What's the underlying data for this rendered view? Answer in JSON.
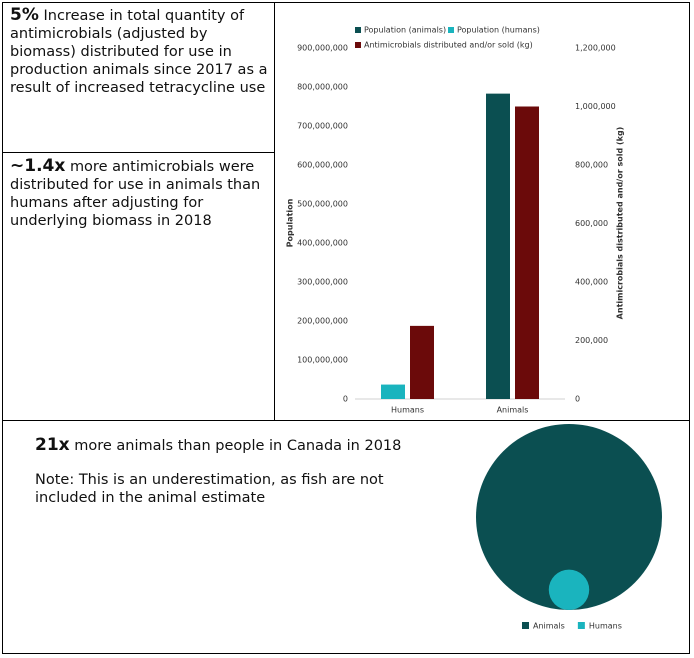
{
  "text_blocks": [
    {
      "highlight": "5%",
      "text": "Increase in total quantity of antimicrobials (adjusted by biomass) distributed for use in production animals since 2017 as a result of increased tetracycline use"
    },
    {
      "highlight": "~1.4x",
      "text": "more antimicrobials were distributed for use in animals than humans after adjusting for underlying biomass in 2018"
    },
    {
      "highlight": "21x",
      "text": "more animals than people in Canada in 2018",
      "note": "Note: This is an underestimation, as fish are not included in the animal estimate"
    }
  ],
  "chart_data": [
    {
      "type": "bar",
      "categories": [
        "Humans",
        "Animals"
      ],
      "series": [
        {
          "name": "Population (animals)",
          "color": "#0b4f51",
          "values": [
            null,
            783000000
          ]
        },
        {
          "name": "Population (humans)",
          "color": "#1ab4be",
          "values": [
            37000000,
            null
          ]
        },
        {
          "name": "Antimicrobials distributed and/or sold (kg)",
          "color": "#6b0a0a",
          "values": [
            250000,
            1000000
          ],
          "axis": "y2"
        }
      ],
      "ylabel": "Population",
      "y2label": "Antimicrobials distributed and/or sold (kg)",
      "ylim": [
        0,
        900000000
      ],
      "yticks": [
        0,
        {
          "value": 100000000,
          "label": "100,000,000"
        },
        {
          "value": 200000000,
          "label": "200,000,000"
        },
        {
          "value": 300000000,
          "label": "300,000,000"
        },
        {
          "value": 400000000,
          "label": "400,000,000"
        },
        {
          "value": 500000000,
          "label": "500,000,000"
        },
        {
          "value": 600000000,
          "label": "600,000,000"
        },
        {
          "value": 700000000,
          "label": "700,000,000"
        },
        {
          "value": 800000000,
          "label": "800,000,000"
        },
        {
          "value": 900000000,
          "label": "900,000,000"
        }
      ],
      "y2lim": [
        0,
        1200000
      ],
      "y2ticks": [
        0,
        {
          "value": 200000,
          "label": "200,000"
        },
        {
          "value": 400000,
          "label": "400,000"
        },
        {
          "value": 600000,
          "label": "600,000"
        },
        {
          "value": 800000,
          "label": "800,000"
        },
        {
          "value": 1000000,
          "label": "1,000,000"
        },
        {
          "value": 1200000,
          "label": "1,200,000"
        }
      ],
      "grid": false,
      "legend": "top"
    },
    {
      "type": "bubble",
      "categories": [
        "Animals",
        "Humans"
      ],
      "values": [
        783000000,
        37000000
      ],
      "colors": [
        "#0b4f51",
        "#1ab4be"
      ],
      "legend": "bottom"
    }
  ]
}
